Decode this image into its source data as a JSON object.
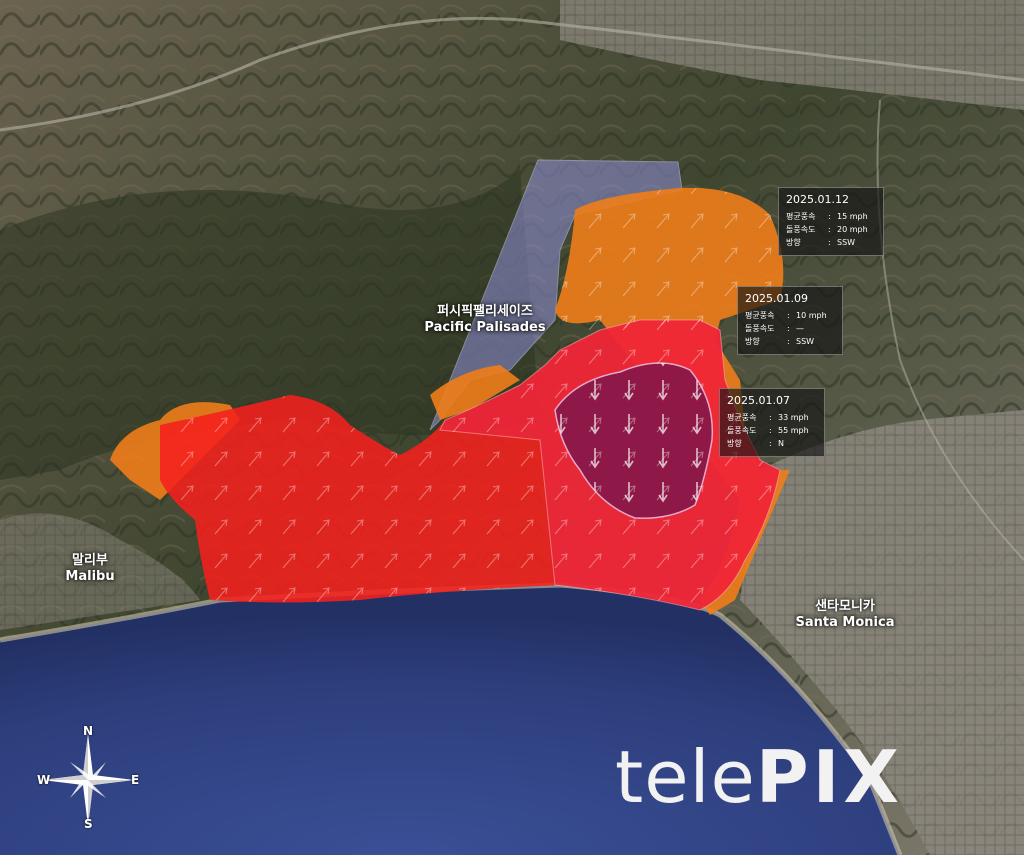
{
  "places": {
    "palisades": {
      "ko": "퍼시픽팰리세이즈",
      "en": "Pacific Palisades"
    },
    "malibu": {
      "ko": "말리부",
      "en": "Malibu"
    },
    "santa_monica": {
      "ko": "샌타모니카",
      "en": "Santa Monica"
    }
  },
  "wind_boxes": [
    {
      "date": "2025.01.12",
      "rows": [
        {
          "k": "평균풍속",
          "v": "15 mph"
        },
        {
          "k": "돌풍속도",
          "v": "20 mph"
        },
        {
          "k": "방향",
          "v": "SSW"
        }
      ]
    },
    {
      "date": "2025.01.09",
      "rows": [
        {
          "k": "평균풍속",
          "v": "10 mph"
        },
        {
          "k": "돌풍속도",
          "v": "—"
        },
        {
          "k": "방향",
          "v": "SSW"
        }
      ]
    },
    {
      "date": "2025.01.07",
      "rows": [
        {
          "k": "평균풍속",
          "v": "33 mph"
        },
        {
          "k": "돌풍속도",
          "v": "55 mph"
        },
        {
          "k": "방향",
          "v": "N"
        }
      ]
    }
  ],
  "compass": {
    "n": "N",
    "s": "S",
    "e": "E",
    "w": "W"
  },
  "logo": {
    "light": "tele",
    "bold": "PIX"
  },
  "colors": {
    "zone_orange": "#f07d1a",
    "zone_red": "#f5201c",
    "zone_pink": "#ee2a4a",
    "zone_core": "#8a1848",
    "zone_lavender": "#8f90d8",
    "ocean": "#2e3f7e"
  }
}
